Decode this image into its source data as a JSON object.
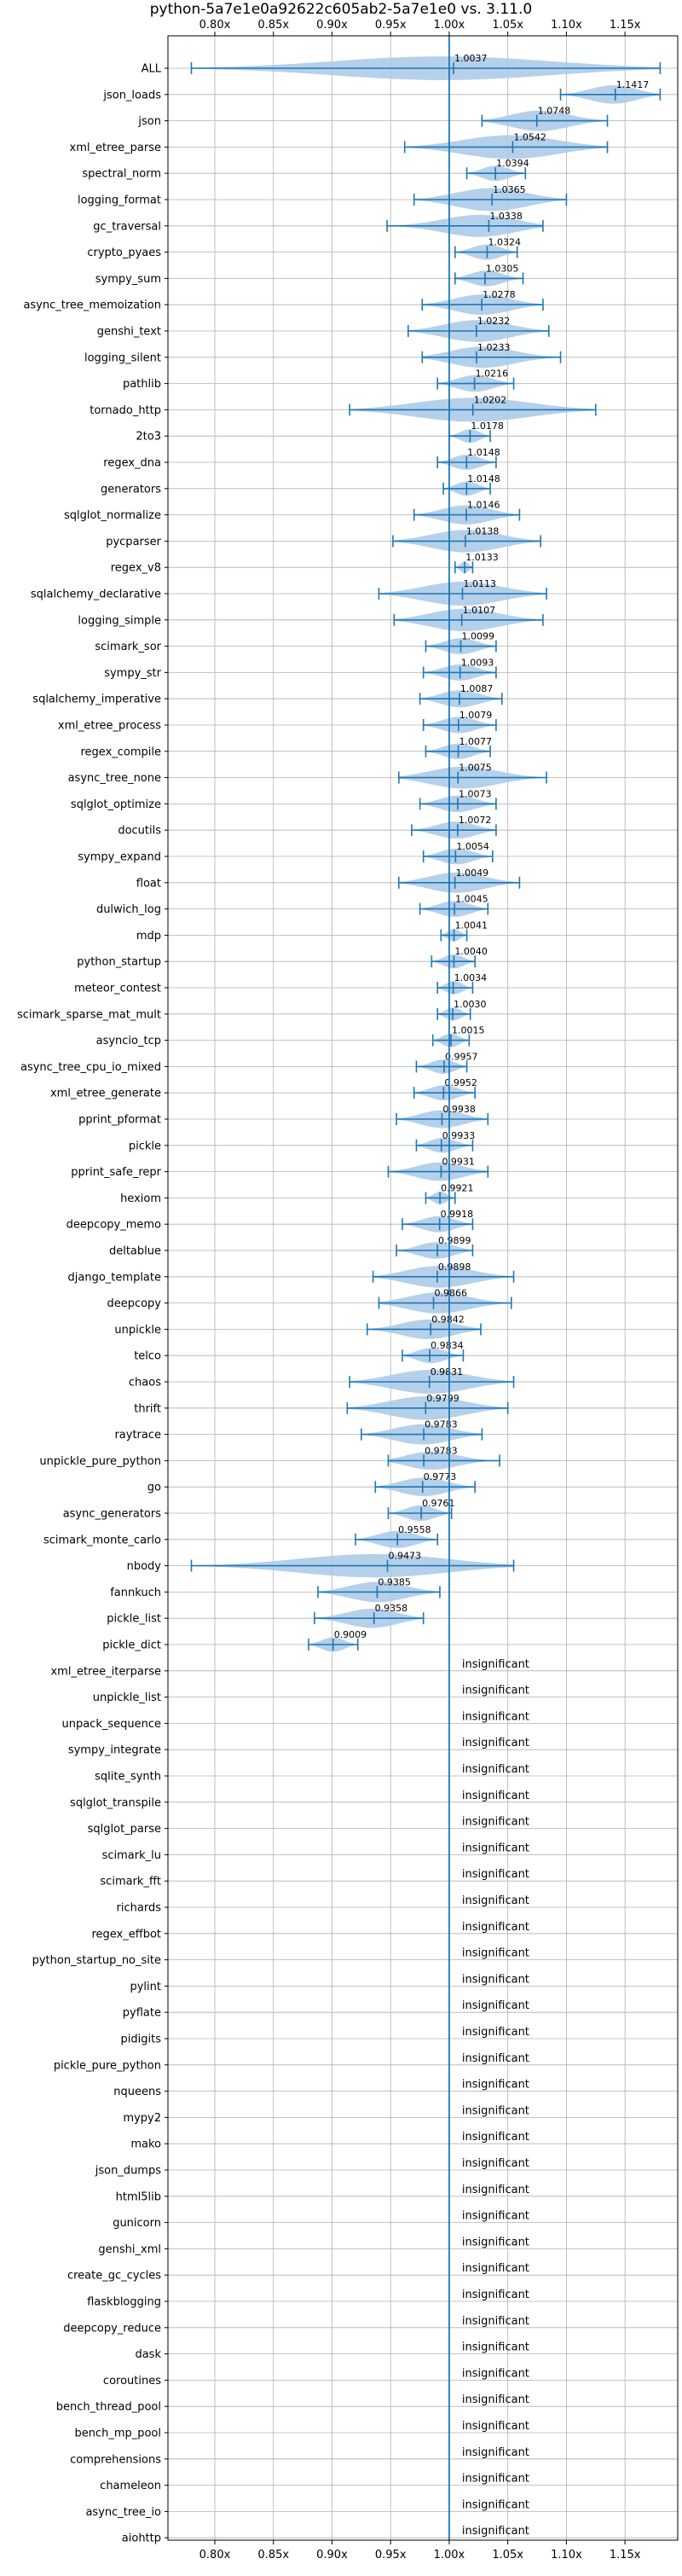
{
  "chart_data": {
    "type": "violin",
    "title": "python-5a7e1e0a92622c605ab2-5a7e1e0 vs. 3.11.0",
    "xlim": [
      0.76,
      1.195
    ],
    "x_ticks": [
      0.8,
      0.85,
      0.9,
      0.95,
      1.0,
      1.05,
      1.1,
      1.15
    ],
    "x_tick_labels": [
      "0.80x",
      "0.85x",
      "0.90x",
      "0.95x",
      "1.00x",
      "1.05x",
      "1.10x",
      "1.15x"
    ],
    "reference_line": 1.0,
    "grid": true,
    "colors": {
      "violin": "#a8c8e6",
      "line": "#1f77b4",
      "grid": "#b0b0b0"
    },
    "insignificant_label": "insignificant",
    "benchmarks": [
      {
        "name": "ALL",
        "label": "1.0037",
        "mean": 1.0037,
        "min": 0.78,
        "max": 1.18
      },
      {
        "name": "json_loads",
        "label": "1.1417",
        "mean": 1.1417,
        "min": 1.095,
        "max": 1.18
      },
      {
        "name": "json",
        "label": "1.0748",
        "mean": 1.0748,
        "min": 1.028,
        "max": 1.135
      },
      {
        "name": "xml_etree_parse",
        "label": "1.0542",
        "mean": 1.0542,
        "min": 0.962,
        "max": 1.135
      },
      {
        "name": "spectral_norm",
        "label": "1.0394",
        "mean": 1.0394,
        "min": 1.015,
        "max": 1.065
      },
      {
        "name": "logging_format",
        "label": "1.0365",
        "mean": 1.0365,
        "min": 0.97,
        "max": 1.1
      },
      {
        "name": "gc_traversal",
        "label": "1.0338",
        "mean": 1.0338,
        "min": 0.947,
        "max": 1.08
      },
      {
        "name": "crypto_pyaes",
        "label": "1.0324",
        "mean": 1.0324,
        "min": 1.005,
        "max": 1.058
      },
      {
        "name": "sympy_sum",
        "label": "1.0305",
        "mean": 1.0305,
        "min": 1.005,
        "max": 1.063
      },
      {
        "name": "async_tree_memoization",
        "label": "1.0278",
        "mean": 1.0278,
        "min": 0.977,
        "max": 1.08
      },
      {
        "name": "genshi_text",
        "label": "1.0232",
        "mean": 1.0232,
        "min": 0.965,
        "max": 1.085
      },
      {
        "name": "logging_silent",
        "label": "1.0233",
        "mean": 1.0233,
        "min": 0.977,
        "max": 1.095
      },
      {
        "name": "pathlib",
        "label": "1.0216",
        "mean": 1.0216,
        "min": 0.99,
        "max": 1.055
      },
      {
        "name": "tornado_http",
        "label": "1.0202",
        "mean": 1.0202,
        "min": 0.915,
        "max": 1.125
      },
      {
        "name": "2to3",
        "label": "1.0178",
        "mean": 1.0178,
        "min": 1.0,
        "max": 1.035
      },
      {
        "name": "regex_dna",
        "label": "1.0148",
        "mean": 1.0148,
        "min": 0.99,
        "max": 1.04
      },
      {
        "name": "generators",
        "label": "1.0148",
        "mean": 1.0148,
        "min": 0.995,
        "max": 1.035
      },
      {
        "name": "sqlglot_normalize",
        "label": "1.0146",
        "mean": 1.0146,
        "min": 0.97,
        "max": 1.06
      },
      {
        "name": "pycparser",
        "label": "1.0138",
        "mean": 1.0138,
        "min": 0.952,
        "max": 1.078
      },
      {
        "name": "regex_v8",
        "label": "1.0133",
        "mean": 1.0133,
        "min": 1.005,
        "max": 1.02
      },
      {
        "name": "sqlalchemy_declarative",
        "label": "1.0113",
        "mean": 1.0113,
        "min": 0.94,
        "max": 1.083
      },
      {
        "name": "logging_simple",
        "label": "1.0107",
        "mean": 1.0107,
        "min": 0.953,
        "max": 1.08
      },
      {
        "name": "scimark_sor",
        "label": "1.0099",
        "mean": 1.0099,
        "min": 0.98,
        "max": 1.04
      },
      {
        "name": "sympy_str",
        "label": "1.0093",
        "mean": 1.0093,
        "min": 0.978,
        "max": 1.04
      },
      {
        "name": "sqlalchemy_imperative",
        "label": "1.0087",
        "mean": 1.0087,
        "min": 0.975,
        "max": 1.045
      },
      {
        "name": "xml_etree_process",
        "label": "1.0079",
        "mean": 1.0079,
        "min": 0.978,
        "max": 1.04
      },
      {
        "name": "regex_compile",
        "label": "1.0077",
        "mean": 1.0077,
        "min": 0.98,
        "max": 1.035
      },
      {
        "name": "async_tree_none",
        "label": "1.0075",
        "mean": 1.0075,
        "min": 0.957,
        "max": 1.083
      },
      {
        "name": "sqlglot_optimize",
        "label": "1.0073",
        "mean": 1.0073,
        "min": 0.975,
        "max": 1.04
      },
      {
        "name": "docutils",
        "label": "1.0072",
        "mean": 1.0072,
        "min": 0.968,
        "max": 1.04
      },
      {
        "name": "sympy_expand",
        "label": "1.0054",
        "mean": 1.0054,
        "min": 0.978,
        "max": 1.037
      },
      {
        "name": "float",
        "label": "1.0049",
        "mean": 1.0049,
        "min": 0.957,
        "max": 1.06
      },
      {
        "name": "dulwich_log",
        "label": "1.0045",
        "mean": 1.0045,
        "min": 0.975,
        "max": 1.033
      },
      {
        "name": "mdp",
        "label": "1.0041",
        "mean": 1.0041,
        "min": 0.993,
        "max": 1.015
      },
      {
        "name": "python_startup",
        "label": "1.0040",
        "mean": 1.004,
        "min": 0.985,
        "max": 1.022
      },
      {
        "name": "meteor_contest",
        "label": "1.0034",
        "mean": 1.0034,
        "min": 0.99,
        "max": 1.02
      },
      {
        "name": "scimark_sparse_mat_mult",
        "label": "1.0030",
        "mean": 1.003,
        "min": 0.99,
        "max": 1.018
      },
      {
        "name": "asyncio_tcp",
        "label": "1.0015",
        "mean": 1.0015,
        "min": 0.986,
        "max": 1.017
      },
      {
        "name": "async_tree_cpu_io_mixed",
        "label": "0.9957",
        "mean": 0.9957,
        "min": 0.972,
        "max": 1.015
      },
      {
        "name": "xml_etree_generate",
        "label": "0.9952",
        "mean": 0.9952,
        "min": 0.97,
        "max": 1.022
      },
      {
        "name": "pprint_pformat",
        "label": "0.9938",
        "mean": 0.9938,
        "min": 0.955,
        "max": 1.033
      },
      {
        "name": "pickle",
        "label": "0.9933",
        "mean": 0.9933,
        "min": 0.972,
        "max": 1.02
      },
      {
        "name": "pprint_safe_repr",
        "label": "0.9931",
        "mean": 0.9931,
        "min": 0.948,
        "max": 1.033
      },
      {
        "name": "hexiom",
        "label": "0.9921",
        "mean": 0.9921,
        "min": 0.98,
        "max": 1.005
      },
      {
        "name": "deepcopy_memo",
        "label": "0.9918",
        "mean": 0.9918,
        "min": 0.96,
        "max": 1.02
      },
      {
        "name": "deltablue",
        "label": "0.9899",
        "mean": 0.9899,
        "min": 0.955,
        "max": 1.02
      },
      {
        "name": "django_template",
        "label": "0.9898",
        "mean": 0.9898,
        "min": 0.935,
        "max": 1.055
      },
      {
        "name": "deepcopy",
        "label": "0.9866",
        "mean": 0.9866,
        "min": 0.94,
        "max": 1.053
      },
      {
        "name": "unpickle",
        "label": "0.9842",
        "mean": 0.9842,
        "min": 0.93,
        "max": 1.027
      },
      {
        "name": "telco",
        "label": "0.9834",
        "mean": 0.9834,
        "min": 0.96,
        "max": 1.012
      },
      {
        "name": "chaos",
        "label": "0.9831",
        "mean": 0.9831,
        "min": 0.915,
        "max": 1.055
      },
      {
        "name": "thrift",
        "label": "0.9799",
        "mean": 0.9799,
        "min": 0.913,
        "max": 1.05
      },
      {
        "name": "raytrace",
        "label": "0.9783",
        "mean": 0.9783,
        "min": 0.925,
        "max": 1.028
      },
      {
        "name": "unpickle_pure_python",
        "label": "0.9783",
        "mean": 0.9783,
        "min": 0.948,
        "max": 1.043
      },
      {
        "name": "go",
        "label": "0.9773",
        "mean": 0.9773,
        "min": 0.937,
        "max": 1.022
      },
      {
        "name": "async_generators",
        "label": "0.9761",
        "mean": 0.9761,
        "min": 0.948,
        "max": 1.002
      },
      {
        "name": "scimark_monte_carlo",
        "label": "0.9558",
        "mean": 0.9558,
        "min": 0.92,
        "max": 0.99
      },
      {
        "name": "nbody",
        "label": "0.9473",
        "mean": 0.9473,
        "min": 0.78,
        "max": 1.055
      },
      {
        "name": "fannkuch",
        "label": "0.9385",
        "mean": 0.9385,
        "min": 0.888,
        "max": 0.992
      },
      {
        "name": "pickle_list",
        "label": "0.9358",
        "mean": 0.9358,
        "min": 0.885,
        "max": 0.978
      },
      {
        "name": "pickle_dict",
        "label": "0.9009",
        "mean": 0.9009,
        "min": 0.88,
        "max": 0.922
      }
    ],
    "insignificant_benchmarks": [
      "xml_etree_iterparse",
      "unpickle_list",
      "unpack_sequence",
      "sympy_integrate",
      "sqlite_synth",
      "sqlglot_transpile",
      "sqlglot_parse",
      "scimark_lu",
      "scimark_fft",
      "richards",
      "regex_effbot",
      "python_startup_no_site",
      "pylint",
      "pyflate",
      "pidigits",
      "pickle_pure_python",
      "nqueens",
      "mypy2",
      "mako",
      "json_dumps",
      "html5lib",
      "gunicorn",
      "genshi_xml",
      "create_gc_cycles",
      "flaskblogging",
      "deepcopy_reduce",
      "dask",
      "coroutines",
      "bench_thread_pool",
      "bench_mp_pool",
      "comprehensions",
      "chameleon",
      "async_tree_io",
      "aiohttp"
    ]
  }
}
